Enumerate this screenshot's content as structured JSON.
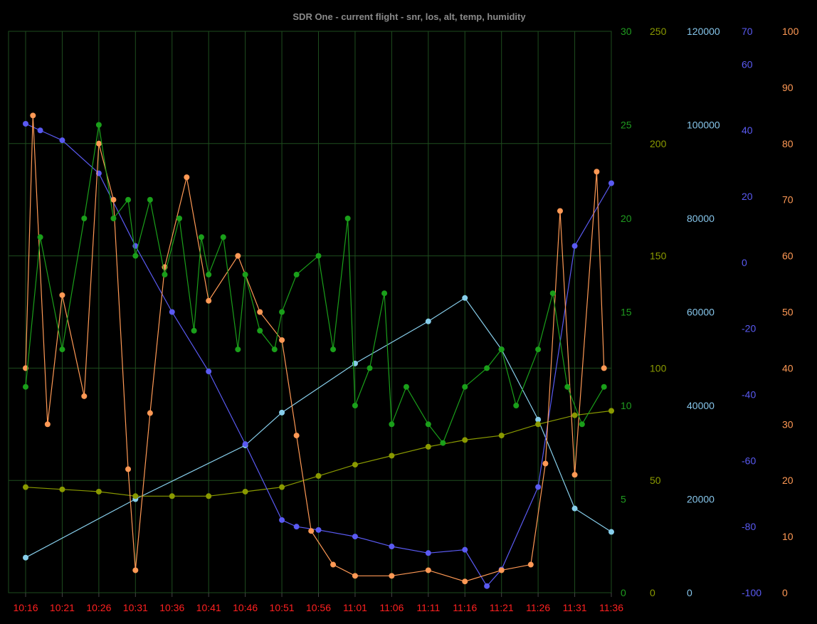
{
  "chart_data": {
    "type": "line",
    "title": "SDR One - current flight - snr, los, alt, temp, humidity",
    "grid": true,
    "x": {
      "range": [
        "10:16",
        "11:36"
      ],
      "ticks": [
        "10:16",
        "10:21",
        "10:26",
        "10:31",
        "10:36",
        "10:41",
        "10:46",
        "10:51",
        "10:56",
        "11:01",
        "11:06",
        "11:11",
        "11:16",
        "11:21",
        "11:26",
        "11:31",
        "11:36"
      ]
    },
    "axes": [
      {
        "id": "snr",
        "ylim": [
          0,
          30
        ],
        "ticks": [
          0,
          5,
          10,
          15,
          20,
          25,
          30
        ],
        "color": "#1f9b1f"
      },
      {
        "id": "los",
        "ylim": [
          0,
          250
        ],
        "ticks": [
          0,
          50,
          100,
          150,
          200,
          250
        ],
        "color": "#8a9a00"
      },
      {
        "id": "alt",
        "ylim": [
          0,
          120000
        ],
        "ticks": [
          0,
          20000,
          40000,
          60000,
          80000,
          100000,
          120000
        ],
        "color": "#86c5ea"
      },
      {
        "id": "temp",
        "ylim": [
          -100,
          70
        ],
        "ticks": [
          -100,
          -80,
          -60,
          -40,
          -20,
          0,
          20,
          40,
          60,
          70
        ],
        "color": "#5a5af2"
      },
      {
        "id": "humidity",
        "ylim": [
          0,
          100
        ],
        "ticks": [
          0,
          10,
          20,
          30,
          40,
          50,
          60,
          70,
          80,
          90,
          100
        ],
        "color": "#ff9955"
      }
    ],
    "series": [
      {
        "axis": "alt",
        "color": "#87ceeb",
        "points": [
          [
            "10:16",
            7500
          ],
          [
            "10:31",
            20000
          ],
          [
            "10:46",
            31500
          ],
          [
            "10:51",
            38500
          ],
          [
            "11:01",
            49000
          ],
          [
            "11:11",
            58000
          ],
          [
            "11:16",
            63000
          ],
          [
            "11:21",
            52000
          ],
          [
            "11:26",
            37000
          ],
          [
            "11:31",
            18000
          ],
          [
            "11:36",
            13000
          ]
        ]
      },
      {
        "axis": "los",
        "color": "#8a9a00",
        "points": [
          [
            "10:16",
            47
          ],
          [
            "10:21",
            46
          ],
          [
            "10:26",
            45
          ],
          [
            "10:31",
            43
          ],
          [
            "10:36",
            43
          ],
          [
            "10:41",
            43
          ],
          [
            "10:46",
            45
          ],
          [
            "10:51",
            47
          ],
          [
            "10:56",
            52
          ],
          [
            "11:01",
            57
          ],
          [
            "11:06",
            61
          ],
          [
            "11:11",
            65
          ],
          [
            "11:16",
            68
          ],
          [
            "11:21",
            70
          ],
          [
            "11:26",
            75
          ],
          [
            "11:31",
            79
          ],
          [
            "11:36",
            81
          ]
        ]
      },
      {
        "axis": "temp",
        "color": "#5a5af2",
        "points": [
          [
            "10:16",
            42
          ],
          [
            "10:18",
            40
          ],
          [
            "10:21",
            37
          ],
          [
            "10:26",
            27
          ],
          [
            "10:31",
            5
          ],
          [
            "10:36",
            -15
          ],
          [
            "10:41",
            -33
          ],
          [
            "10:46",
            -55
          ],
          [
            "10:51",
            -78
          ],
          [
            "10:53",
            -80
          ],
          [
            "10:56",
            -81
          ],
          [
            "11:01",
            -83
          ],
          [
            "11:06",
            -86
          ],
          [
            "11:11",
            -88
          ],
          [
            "11:16",
            -87
          ],
          [
            "11:19",
            -98
          ],
          [
            "11:21",
            -93
          ],
          [
            "11:26",
            -68
          ],
          [
            "11:31",
            5
          ],
          [
            "11:36",
            24
          ]
        ]
      },
      {
        "axis": "humidity",
        "color": "#ff9955",
        "points": [
          [
            "10:16",
            40
          ],
          [
            "10:17",
            85
          ],
          [
            "10:19",
            30
          ],
          [
            "10:21",
            53
          ],
          [
            "10:24",
            35
          ],
          [
            "10:26",
            80
          ],
          [
            "10:28",
            70
          ],
          [
            "10:30",
            22
          ],
          [
            "10:31",
            4
          ],
          [
            "10:33",
            32
          ],
          [
            "10:35",
            58
          ],
          [
            "10:38",
            74
          ],
          [
            "10:41",
            52
          ],
          [
            "10:45",
            60
          ],
          [
            "10:48",
            50
          ],
          [
            "10:51",
            45
          ],
          [
            "10:53",
            28
          ],
          [
            "10:55",
            11
          ],
          [
            "10:58",
            5
          ],
          [
            "11:01",
            3
          ],
          [
            "11:06",
            3
          ],
          [
            "11:11",
            4
          ],
          [
            "11:16",
            2
          ],
          [
            "11:21",
            4
          ],
          [
            "11:25",
            5
          ],
          [
            "11:27",
            23
          ],
          [
            "11:29",
            68
          ],
          [
            "11:31",
            21
          ],
          [
            "11:34",
            75
          ],
          [
            "11:35",
            40
          ]
        ]
      },
      {
        "axis": "snr",
        "color": "#1a9f1a",
        "points": [
          [
            "10:16",
            11
          ],
          [
            "10:18",
            19
          ],
          [
            "10:21",
            13
          ],
          [
            "10:24",
            20
          ],
          [
            "10:26",
            25
          ],
          [
            "10:28",
            20
          ],
          [
            "10:30",
            21
          ],
          [
            "10:31",
            18
          ],
          [
            "10:33",
            21
          ],
          [
            "10:35",
            17
          ],
          [
            "10:37",
            20
          ],
          [
            "10:39",
            14
          ],
          [
            "10:40",
            19
          ],
          [
            "10:41",
            17
          ],
          [
            "10:43",
            19
          ],
          [
            "10:45",
            13
          ],
          [
            "10:46",
            17
          ],
          [
            "10:48",
            14
          ],
          [
            "10:50",
            13
          ],
          [
            "10:51",
            15
          ],
          [
            "10:53",
            17
          ],
          [
            "10:56",
            18
          ],
          [
            "10:58",
            13
          ],
          [
            "11:00",
            20
          ],
          [
            "11:01",
            10
          ],
          [
            "11:03",
            12
          ],
          [
            "11:05",
            16
          ],
          [
            "11:06",
            9
          ],
          [
            "11:08",
            11
          ],
          [
            "11:11",
            9
          ],
          [
            "11:13",
            8
          ],
          [
            "11:16",
            11
          ],
          [
            "11:19",
            12
          ],
          [
            "11:21",
            13
          ],
          [
            "11:23",
            10
          ],
          [
            "11:26",
            13
          ],
          [
            "11:28",
            16
          ],
          [
            "11:30",
            11
          ],
          [
            "11:32",
            9
          ],
          [
            "11:35",
            11
          ]
        ]
      }
    ]
  }
}
